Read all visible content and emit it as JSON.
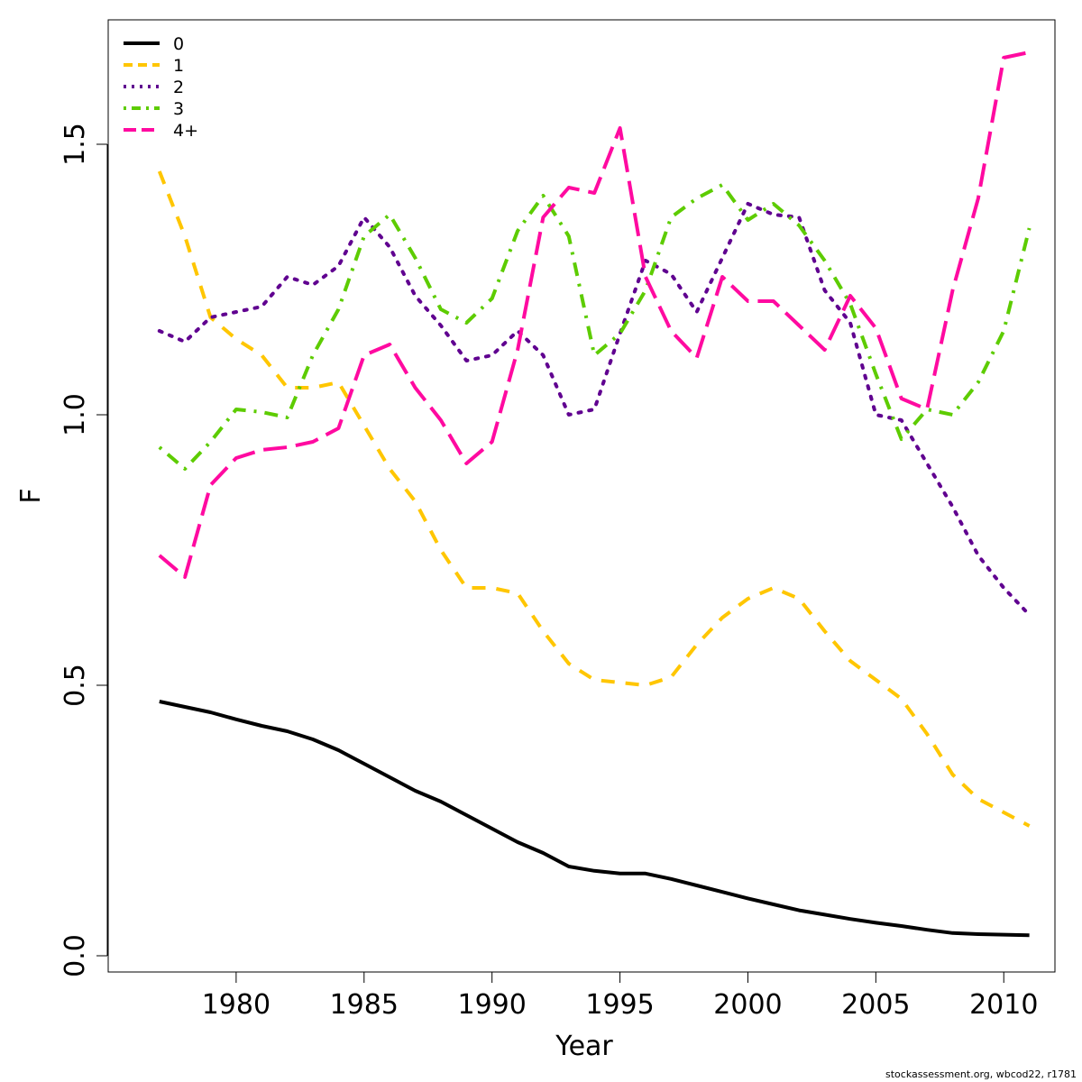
{
  "chart_data": {
    "type": "line",
    "xlabel": "Year",
    "ylabel": "F",
    "xlim": [
      1975,
      2012
    ],
    "ylim": [
      -0.03,
      1.73
    ],
    "xticks": [
      1980,
      1985,
      1990,
      1995,
      2000,
      2005,
      2010
    ],
    "yticks": [
      0.0,
      0.5,
      1.0,
      1.5
    ],
    "ytick_labels": [
      "0.0",
      "0.5",
      "1.0",
      "1.5"
    ],
    "legend_position": "top-left",
    "grid": false,
    "x": [
      1977,
      1978,
      1979,
      1980,
      1981,
      1982,
      1983,
      1984,
      1985,
      1986,
      1987,
      1988,
      1989,
      1990,
      1991,
      1992,
      1993,
      1994,
      1995,
      1996,
      1997,
      1998,
      1999,
      2000,
      2001,
      2002,
      2003,
      2004,
      2005,
      2006,
      2007,
      2008,
      2009,
      2010,
      2011
    ],
    "series": [
      {
        "name": "0",
        "color": "#000000",
        "dash": "solid",
        "values": [
          0.47,
          0.46,
          0.45,
          0.437,
          0.425,
          0.415,
          0.4,
          0.38,
          0.355,
          0.33,
          0.305,
          0.285,
          0.26,
          0.235,
          0.21,
          0.19,
          0.165,
          0.157,
          0.152,
          0.152,
          0.142,
          0.13,
          0.118,
          0.106,
          0.095,
          0.084,
          0.076,
          0.068,
          0.061,
          0.055,
          0.048,
          0.042,
          0.04,
          0.039,
          0.038
        ]
      },
      {
        "name": "1",
        "color": "#FFC600",
        "dash": "dashed",
        "values": [
          1.45,
          1.33,
          1.18,
          1.14,
          1.11,
          1.05,
          1.05,
          1.06,
          0.98,
          0.9,
          0.84,
          0.75,
          0.68,
          0.68,
          0.67,
          0.6,
          0.54,
          0.51,
          0.505,
          0.5,
          0.515,
          0.575,
          0.625,
          0.66,
          0.68,
          0.66,
          0.6,
          0.545,
          0.51,
          0.475,
          0.41,
          0.335,
          0.29,
          0.265,
          0.24
        ]
      },
      {
        "name": "2",
        "color": "#600090",
        "dash": "dotted",
        "values": [
          1.155,
          1.135,
          1.18,
          1.19,
          1.2,
          1.255,
          1.24,
          1.275,
          1.365,
          1.31,
          1.22,
          1.165,
          1.1,
          1.11,
          1.155,
          1.11,
          1.0,
          1.01,
          1.15,
          1.285,
          1.26,
          1.19,
          1.29,
          1.39,
          1.37,
          1.365,
          1.23,
          1.17,
          1.0,
          0.99,
          0.91,
          0.83,
          0.74,
          0.68,
          0.63
        ]
      },
      {
        "name": "3",
        "color": "#5DCC00",
        "dash": "dotdash",
        "values": [
          0.94,
          0.9,
          0.95,
          1.01,
          1.005,
          0.995,
          1.11,
          1.195,
          1.33,
          1.37,
          1.29,
          1.195,
          1.17,
          1.215,
          1.34,
          1.405,
          1.33,
          1.11,
          1.15,
          1.23,
          1.365,
          1.4,
          1.425,
          1.36,
          1.39,
          1.35,
          1.285,
          1.205,
          1.075,
          0.955,
          1.01,
          1.0,
          1.06,
          1.155,
          1.345
        ]
      },
      {
        "name": "4+",
        "color": "#FF0AA0",
        "dash": "longdash",
        "values": [
          0.74,
          0.7,
          0.87,
          0.92,
          0.935,
          0.94,
          0.95,
          0.975,
          1.11,
          1.13,
          1.05,
          0.99,
          0.91,
          0.95,
          1.12,
          1.365,
          1.42,
          1.41,
          1.53,
          1.255,
          1.155,
          1.105,
          1.255,
          1.21,
          1.21,
          1.165,
          1.12,
          1.22,
          1.16,
          1.03,
          1.01,
          1.23,
          1.4,
          1.66,
          1.67
        ]
      }
    ]
  },
  "credit": "stockassessment.org, wbcod22, r1781"
}
